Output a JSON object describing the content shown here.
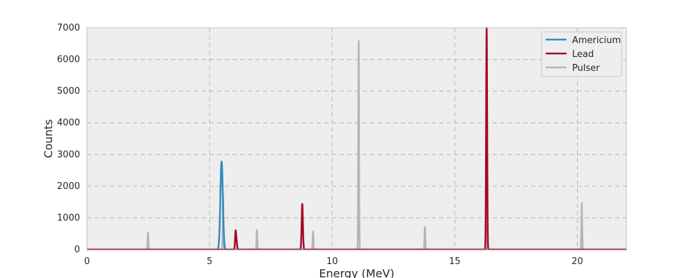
{
  "chart_data": {
    "type": "line",
    "title": "",
    "xlabel": "Energy (MeV)",
    "ylabel": "Counts",
    "xlim": [
      0,
      22
    ],
    "ylim": [
      0,
      7000
    ],
    "xticks": [
      0,
      5,
      10,
      15,
      20
    ],
    "yticks": [
      0,
      1000,
      2000,
      3000,
      4000,
      5000,
      6000,
      7000
    ],
    "grid": true,
    "legend_placement": "top-right",
    "series": [
      {
        "name": "Americium",
        "color": "#348abd",
        "peaks": [
          {
            "center": 5.49,
            "height": 2780,
            "width": 0.05
          }
        ]
      },
      {
        "name": "Lead",
        "color": "#a60628",
        "peaks": [
          {
            "center": 6.06,
            "height": 570,
            "width": 0.02
          },
          {
            "center": 6.1,
            "height": 250,
            "width": 0.02
          },
          {
            "center": 8.78,
            "height": 1440,
            "width": 0.025
          },
          {
            "center": 16.3,
            "height": 7000,
            "width": 0.02
          }
        ]
      },
      {
        "name": "Pulser",
        "color": "#b5b5b5",
        "peaks": [
          {
            "center": 2.49,
            "height": 530,
            "width": 0.015
          },
          {
            "center": 5.55,
            "height": 1750,
            "width": 0.015
          },
          {
            "center": 6.93,
            "height": 620,
            "width": 0.015
          },
          {
            "center": 9.22,
            "height": 570,
            "width": 0.015
          },
          {
            "center": 11.08,
            "height": 6580,
            "width": 0.015
          },
          {
            "center": 13.78,
            "height": 710,
            "width": 0.015
          },
          {
            "center": 16.3,
            "height": 760,
            "width": 0.015
          },
          {
            "center": 20.18,
            "height": 1460,
            "width": 0.015
          }
        ]
      }
    ]
  }
}
